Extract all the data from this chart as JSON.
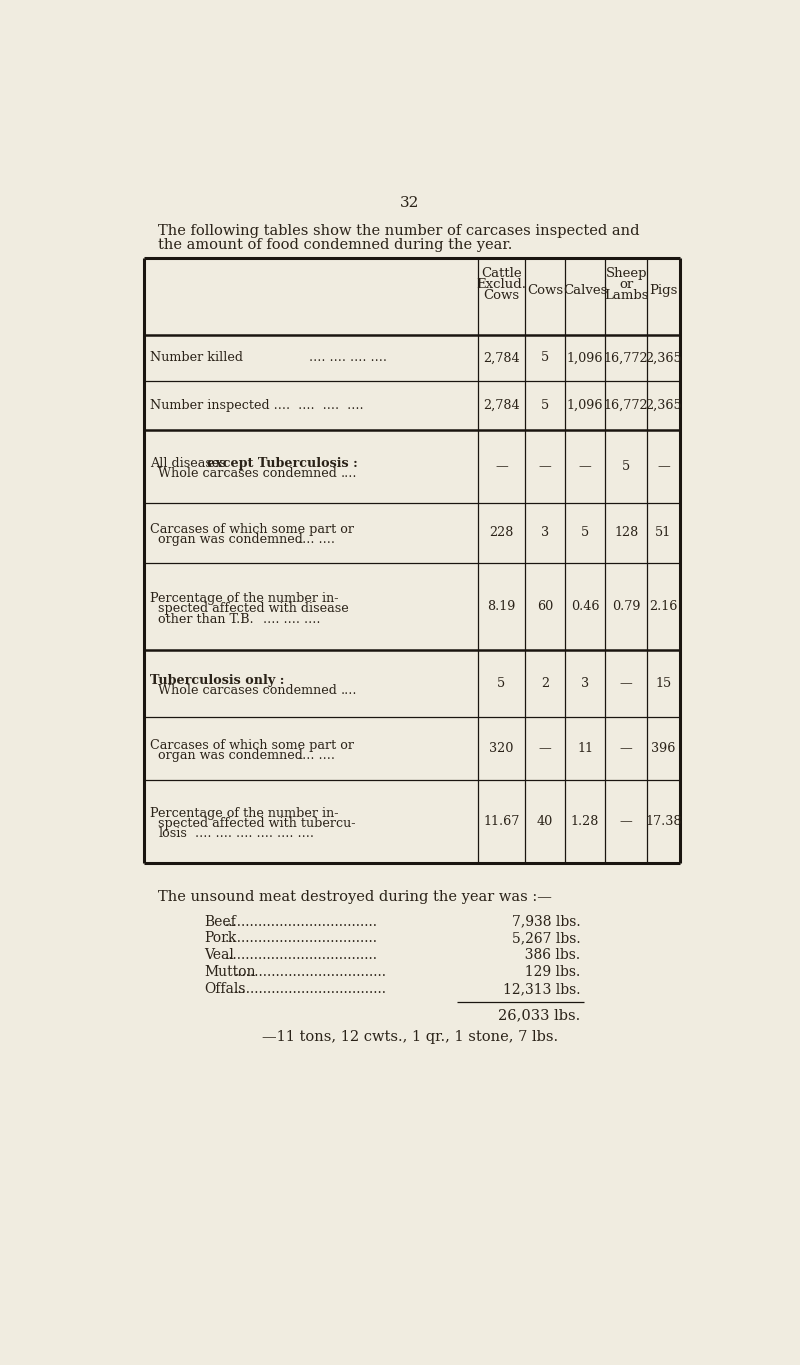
{
  "bg_color": "#f0ece0",
  "page_number": "32",
  "intro_line1": "The following tables show the number of carcases inspected and",
  "intro_line2": "the amount of food condemned during the year.",
  "col_headers_1": [
    "Cattle",
    "Exclud.",
    "Cows"
  ],
  "col_headers_single": [
    "Cows",
    "Calves"
  ],
  "col_headers_sheep": [
    "Sheep",
    "or",
    "Lambs"
  ],
  "col_headers_pigs": [
    "Pigs"
  ],
  "values_killed": [
    "2,784",
    "5",
    "1,096",
    "16,772",
    "2,365"
  ],
  "values_inspected": [
    "2,784",
    "5",
    "1,096",
    "16,772",
    "2,365"
  ],
  "values_whole_diseases": [
    "—",
    "—",
    "—",
    "5",
    "—"
  ],
  "values_carcases_diseases": [
    "228",
    "3",
    "5",
    "128",
    "51"
  ],
  "values_pct_diseases": [
    "8.19",
    "60",
    "0.46",
    "0.79",
    "2.16"
  ],
  "values_whole_tb": [
    "5",
    "2",
    "3",
    "—",
    "15"
  ],
  "values_carcases_tb": [
    "320",
    "—",
    "11",
    "—",
    "396"
  ],
  "values_pct_tb": [
    "11.67",
    "40",
    "1.28",
    "—",
    "17.38"
  ],
  "meat_intro": "The unsound meat destroyed during the year was :—",
  "meat_names": [
    "Beef",
    "Pork",
    "Veal",
    "Mutton",
    "Offals"
  ],
  "meat_values": [
    "7,938 lbs.",
    "5,267 lbs.",
    "  386 lbs.",
    "  129 lbs.",
    "12,313 lbs."
  ],
  "meat_total": "26,033 lbs.",
  "meat_equiv": "—11 tons, 12 cwts., 1 qr., 1 stone, 7 lbs.",
  "tc": "#2a2218",
  "lc": "#1a1510"
}
